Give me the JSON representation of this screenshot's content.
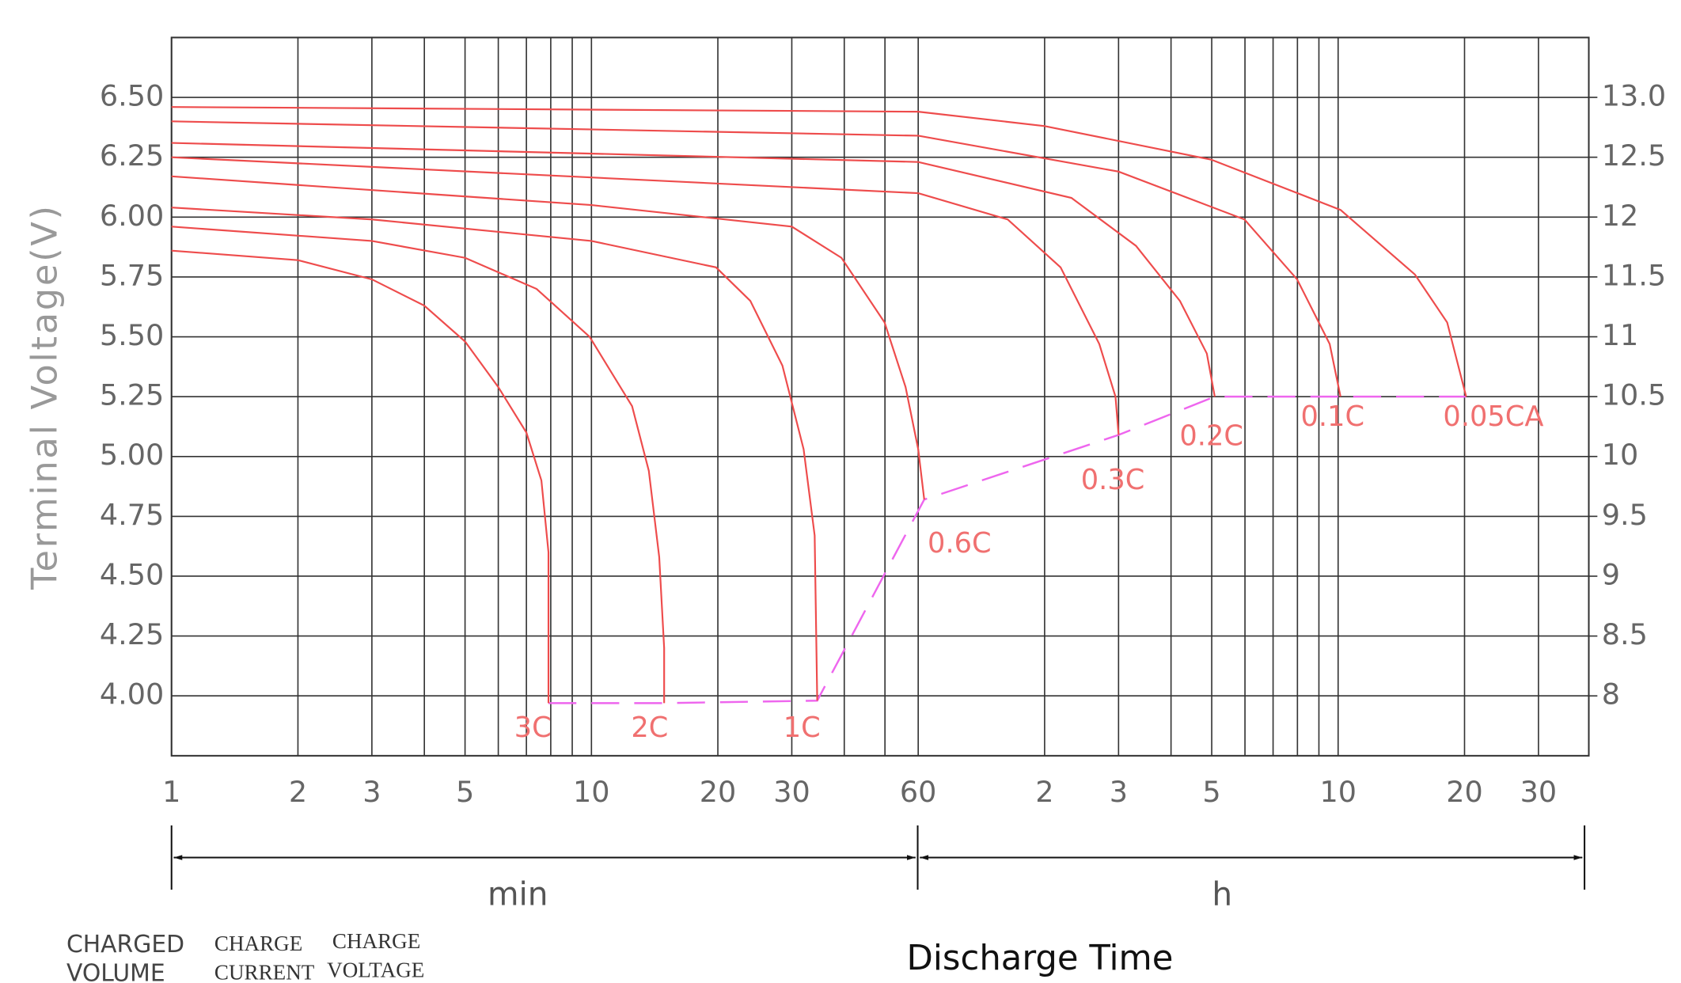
{
  "chart_data": {
    "type": "line",
    "y_label": "Terminal Voltage(V)",
    "x_label": "Discharge Time",
    "x_unit_labels": [
      "min",
      "h"
    ],
    "footer_labels": [
      "CHARGED",
      "VOLUME",
      "CHARGE",
      "CURRENT",
      "CHARGE",
      "VOLTAGE"
    ],
    "xlog": true,
    "grid": true,
    "xlim": [
      1,
      2372
    ],
    "xticks": [
      1,
      2,
      3,
      5,
      10,
      20,
      30,
      60,
      {
        "value": 120,
        "label": "2"
      },
      {
        "value": 180,
        "label": "3"
      },
      {
        "value": 300,
        "label": "5"
      },
      {
        "value": 600,
        "label": "10"
      },
      {
        "value": 1200,
        "label": "20"
      },
      {
        "value": 1800,
        "label": "30"
      }
    ],
    "xminor": [
      4,
      6,
      7,
      8,
      9,
      40,
      50,
      240,
      360,
      420,
      480,
      540
    ],
    "ylim": [
      3.75,
      6.75
    ],
    "yticks": [
      {
        "value": 4,
        "label": "4.00"
      },
      {
        "value": 4.25,
        "label": "4.25"
      },
      {
        "value": 4.5,
        "label": "4.50"
      },
      {
        "value": 4.75,
        "label": "4.75"
      },
      {
        "value": 5,
        "label": "5.00"
      },
      {
        "value": 5.25,
        "label": "5.25"
      },
      {
        "value": 5.5,
        "label": "5.50"
      },
      {
        "value": 5.75,
        "label": "5.75"
      },
      {
        "value": 6,
        "label": "6.00"
      },
      {
        "value": 6.25,
        "label": "6.25"
      },
      {
        "value": 6.5,
        "label": "6.50"
      }
    ],
    "y2lim": [
      7.5,
      13.5
    ],
    "y2ticks": [
      8,
      8.5,
      9,
      9.5,
      10,
      10.5,
      11,
      11.5,
      12,
      12.5,
      {
        "value": 13,
        "label": "13.0"
      }
    ],
    "series": [
      {
        "name": "3C",
        "color": "#ee4c4c",
        "x": [
          1,
          2,
          3,
          4,
          5,
          6,
          7,
          7.6,
          7.9,
          7.9
        ],
        "values": [
          5.86,
          5.82,
          5.74,
          5.63,
          5.48,
          5.29,
          5.1,
          4.9,
          4.6,
          3.97
        ]
      },
      {
        "name": "2C",
        "color": "#ee4c4c",
        "x": [
          1,
          3,
          5,
          7.4,
          9.9,
          12.5,
          13.7,
          14.5,
          14.9,
          14.9
        ],
        "values": [
          5.96,
          5.9,
          5.83,
          5.7,
          5.5,
          5.21,
          4.94,
          4.58,
          4.2,
          3.97
        ]
      },
      {
        "name": "1C",
        "color": "#ee4c4c",
        "x": [
          1,
          3,
          10,
          19.8,
          23.9,
          28.5,
          32,
          34,
          34.5
        ],
        "values": [
          6.04,
          5.99,
          5.9,
          5.79,
          5.65,
          5.38,
          5.03,
          4.67,
          3.98
        ]
      },
      {
        "name": "0.6C",
        "color": "#ee4c4c",
        "x": [
          1,
          10,
          30,
          39.4,
          49.9,
          56,
          60,
          62
        ],
        "values": [
          6.17,
          6.05,
          5.96,
          5.83,
          5.56,
          5.29,
          5.03,
          4.82
        ]
      },
      {
        "name": "0.3C",
        "color": "#ee4c4c",
        "x": [
          1,
          60,
          98,
          131,
          162,
          177,
          180
        ],
        "values": [
          6.25,
          6.1,
          5.99,
          5.79,
          5.47,
          5.25,
          5.09
        ]
      },
      {
        "name": "0.2C",
        "color": "#ee4c4c",
        "x": [
          1,
          60,
          139,
          198,
          252,
          292,
          305
        ],
        "values": [
          6.31,
          6.23,
          6.08,
          5.88,
          5.65,
          5.43,
          5.25
        ]
      },
      {
        "name": "0.1C",
        "color": "#ee4c4c",
        "x": [
          1,
          60,
          180,
          359,
          479,
          573,
          608
        ],
        "values": [
          6.4,
          6.34,
          6.19,
          5.99,
          5.74,
          5.47,
          5.25
        ]
      },
      {
        "name": "0.05CA",
        "color": "#ee4c4c",
        "x": [
          1,
          60,
          120,
          299,
          608,
          914,
          1091,
          1211
        ],
        "values": [
          6.46,
          6.44,
          6.38,
          6.24,
          6.03,
          5.76,
          5.56,
          5.25
        ]
      }
    ],
    "cutoff": {
      "color": "#ee66ee",
      "x": [
        7.9,
        14.9,
        34.5,
        62,
        180,
        305,
        608,
        1211
      ],
      "values": [
        3.97,
        3.97,
        3.98,
        4.82,
        5.09,
        5.25,
        5.25,
        5.25
      ]
    }
  }
}
